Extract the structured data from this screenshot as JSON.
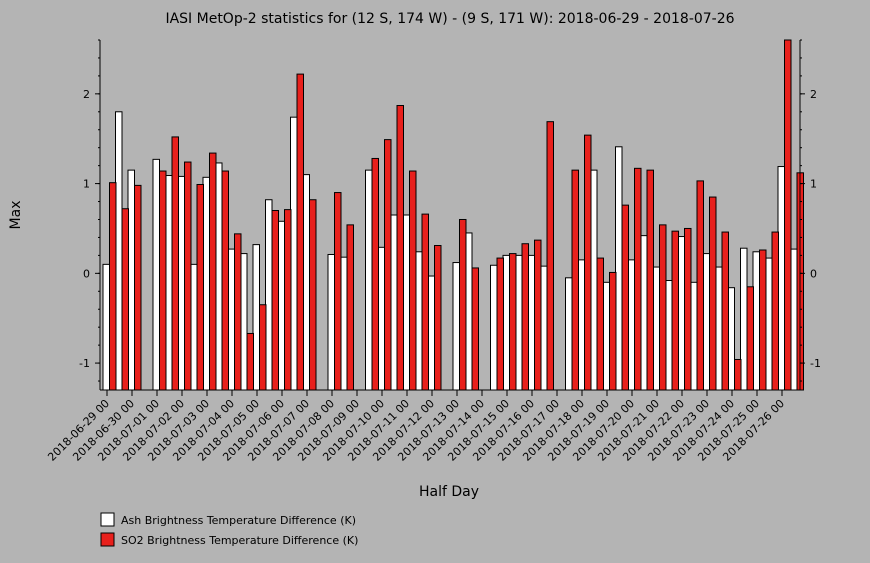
{
  "chart_data": {
    "type": "bar",
    "title": "IASI MetOp-2 statistics for (12 S, 174 W) - (9 S, 171 W): 2018-06-29 - 2018-07-26",
    "xlabel": "Half Day",
    "ylabel": "Max",
    "ylim": [
      -1.3,
      2.6
    ],
    "yticks": [
      -1,
      0,
      1,
      2
    ],
    "grid": false,
    "legend_position": "bottom-left",
    "x_tick_labels": [
      "2018-06-29 00",
      "2018-06-30 00",
      "2018-07-01 00",
      "2018-07-02 00",
      "2018-07-03 00",
      "2018-07-04 00",
      "2018-07-05 00",
      "2018-07-06 00",
      "2018-07-07 00",
      "2018-07-08 00",
      "2018-07-09 00",
      "2018-07-10 00",
      "2018-07-11 00",
      "2018-07-12 00",
      "2018-07-13 00",
      "2018-07-14 00",
      "2018-07-15 00",
      "2018-07-16 00",
      "2018-07-17 00",
      "2018-07-18 00",
      "2018-07-19 00",
      "2018-07-20 00",
      "2018-07-21 00",
      "2018-07-22 00",
      "2018-07-23 00",
      "2018-07-24 00",
      "2018-07-25 00",
      "2018-07-26 00"
    ],
    "series": [
      {
        "name": "Ash Brightness Temperature Difference (K)",
        "color": "#ffffff",
        "values": [
          0.1,
          1.8,
          1.15,
          null,
          1.27,
          1.09,
          1.08,
          0.1,
          1.07,
          1.23,
          0.27,
          0.22,
          0.32,
          0.82,
          0.58,
          1.74,
          1.1,
          null,
          0.21,
          0.18,
          null,
          1.15,
          0.29,
          0.65,
          0.65,
          0.24,
          -0.03,
          null,
          0.12,
          0.45,
          null,
          0.09,
          0.2,
          0.2,
          0.2,
          0.08,
          null,
          -0.05,
          0.15,
          1.15,
          -0.1,
          1.41,
          0.15,
          0.42,
          0.07,
          -0.08,
          0.41,
          -0.1,
          0.22,
          0.07,
          -0.16,
          0.28,
          0.24,
          0.17,
          1.19,
          0.27
        ]
      },
      {
        "name": "SO2 Brightness Temperature Difference (K)",
        "color": "#e8201c",
        "values": [
          1.01,
          0.72,
          0.98,
          null,
          1.14,
          1.52,
          1.24,
          0.99,
          1.34,
          1.14,
          0.44,
          -0.67,
          -0.35,
          0.7,
          0.71,
          2.22,
          0.82,
          null,
          0.9,
          0.54,
          null,
          1.28,
          1.49,
          1.87,
          1.14,
          0.66,
          0.31,
          null,
          0.6,
          0.06,
          null,
          0.17,
          0.22,
          0.33,
          0.37,
          1.69,
          null,
          1.15,
          1.54,
          0.17,
          0.01,
          0.76,
          1.17,
          1.15,
          0.54,
          0.47,
          0.5,
          1.03,
          0.85,
          0.46,
          -0.96,
          -0.15,
          0.26,
          0.46,
          2.6,
          1.12
        ]
      }
    ]
  }
}
